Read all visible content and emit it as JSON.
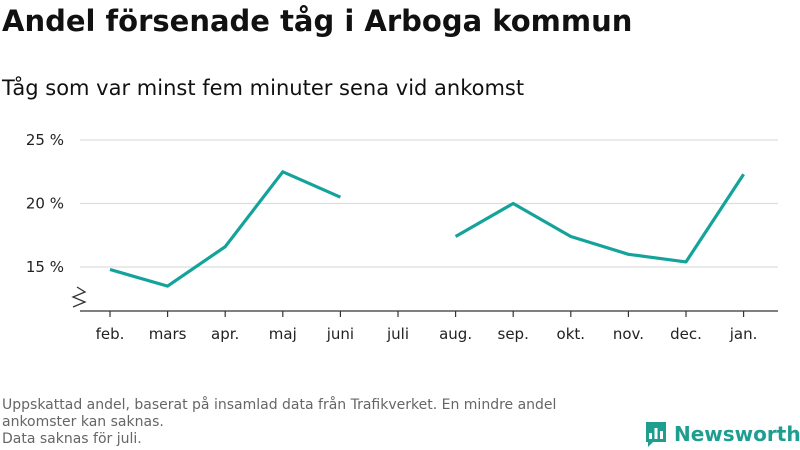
{
  "title": "Andel försenade tåg i Arboga kommun",
  "subtitle": "Tåg som var minst fem minuter sena vid ankomst",
  "chart_data": {
    "type": "line",
    "categories": [
      "feb.",
      "mars",
      "apr.",
      "maj",
      "juni",
      "juli",
      "aug.",
      "sep.",
      "okt.",
      "nov.",
      "dec.",
      "jan."
    ],
    "series": [
      {
        "values": [
          14.8,
          13.5,
          16.6,
          22.5,
          20.5,
          null,
          17.4,
          20.0,
          17.4,
          16.0,
          15.4,
          22.3
        ]
      }
    ],
    "yticks": [
      15,
      20,
      25
    ],
    "ytick_labels": [
      "15 %",
      "20 %",
      "25 %"
    ],
    "ylim": [
      11.5,
      25
    ],
    "axis_break": true,
    "grid": true,
    "line_color": "#14a39a",
    "xlabel": "",
    "ylabel": ""
  },
  "footnote": {
    "line1": "Uppskattad andel, baserat på insamlad data från Trafikverket. En mindre andel",
    "line2": "ankomster kan saknas.",
    "line3": "Data saknas för juli."
  },
  "logo": {
    "text": "Newsworthy",
    "color": "#1e9e8f",
    "icon": "newsworthy-bar-chart-icon"
  }
}
